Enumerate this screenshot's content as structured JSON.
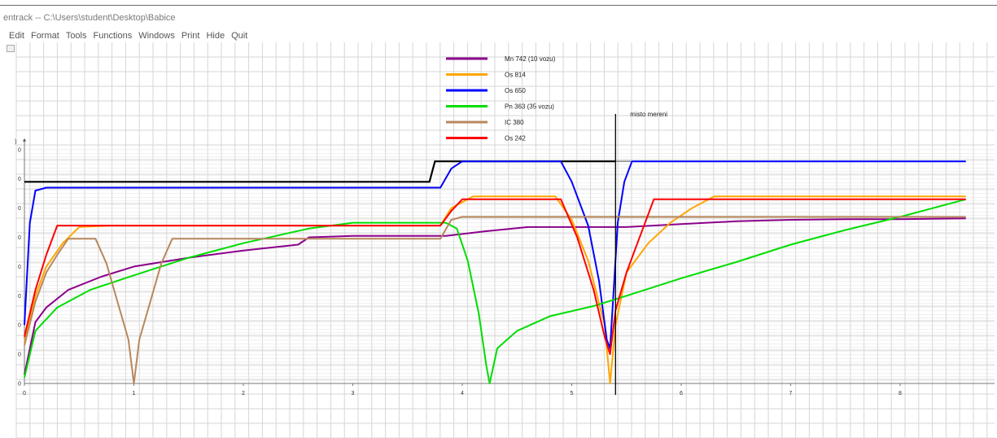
{
  "window": {
    "title": "entrack  --  C:\\Users\\student\\Desktop\\Babice"
  },
  "menu": [
    "Edit",
    "Format",
    "Tools",
    "Functions",
    "Windows",
    "Print",
    "Hide",
    "Quit"
  ],
  "chart_data": {
    "type": "line",
    "title": "",
    "xlabel": "",
    "ylabel": "",
    "ylabel_fragment": ")",
    "xlim": [
      0,
      8.6
    ],
    "ylim": [
      0,
      8
    ],
    "x_ticks": [
      "0",
      "1",
      "2",
      "3",
      "4",
      "5",
      "6",
      "7",
      "8"
    ],
    "y_ticks": [
      "0",
      "0",
      "0",
      "0",
      "0",
      "0",
      "0",
      "0",
      "0"
    ],
    "grid": true,
    "legend_position": "top-center",
    "annotation": {
      "text": "misto mereni",
      "x": 5.4
    },
    "speed_limit": {
      "name": "",
      "color": "#000000",
      "points": [
        [
          0,
          6.9
        ],
        [
          3.7,
          6.9
        ],
        [
          3.75,
          7.6
        ],
        [
          5.4,
          7.6
        ]
      ]
    },
    "series": [
      {
        "name": "Mn 742 (10 vozu)",
        "color": "#8b008b",
        "points": [
          [
            0,
            0.3
          ],
          [
            0.1,
            2.1
          ],
          [
            0.2,
            2.6
          ],
          [
            0.4,
            3.2
          ],
          [
            0.7,
            3.65
          ],
          [
            1.0,
            4.0
          ],
          [
            1.5,
            4.3
          ],
          [
            2.0,
            4.55
          ],
          [
            2.5,
            4.75
          ],
          [
            2.6,
            5.0
          ],
          [
            3.0,
            5.05
          ],
          [
            3.85,
            5.05
          ],
          [
            4.2,
            5.2
          ],
          [
            4.6,
            5.35
          ],
          [
            5.0,
            5.35
          ],
          [
            5.5,
            5.35
          ],
          [
            6.0,
            5.45
          ],
          [
            6.5,
            5.55
          ],
          [
            7.0,
            5.6
          ],
          [
            7.5,
            5.62
          ],
          [
            8.0,
            5.62
          ],
          [
            8.6,
            5.65
          ]
        ]
      },
      {
        "name": "Os 814",
        "color": "#ffa500",
        "points": [
          [
            0,
            1.4
          ],
          [
            0.1,
            3.0
          ],
          [
            0.2,
            4.0
          ],
          [
            0.35,
            4.8
          ],
          [
            0.5,
            5.35
          ],
          [
            0.8,
            5.4
          ],
          [
            2.5,
            5.4
          ],
          [
            3.8,
            5.4
          ],
          [
            3.9,
            6.0
          ],
          [
            4.1,
            6.4
          ],
          [
            4.85,
            6.4
          ],
          [
            5.0,
            5.6
          ],
          [
            5.15,
            4.2
          ],
          [
            5.3,
            2.0
          ],
          [
            5.35,
            0.0
          ],
          [
            5.4,
            2.0
          ],
          [
            5.5,
            3.8
          ],
          [
            5.7,
            4.8
          ],
          [
            5.9,
            5.5
          ],
          [
            6.1,
            6.0
          ],
          [
            6.3,
            6.4
          ],
          [
            8.6,
            6.4
          ]
        ]
      },
      {
        "name": "Os 650",
        "color": "#0000ff",
        "points": [
          [
            0,
            2.0
          ],
          [
            0.05,
            5.5
          ],
          [
            0.1,
            6.6
          ],
          [
            0.2,
            6.7
          ],
          [
            3.8,
            6.7
          ],
          [
            3.9,
            7.35
          ],
          [
            4.0,
            7.6
          ],
          [
            4.9,
            7.6
          ],
          [
            5.0,
            6.9
          ],
          [
            5.15,
            5.4
          ],
          [
            5.25,
            3.5
          ],
          [
            5.32,
            1.5
          ],
          [
            5.35,
            1.2
          ],
          [
            5.38,
            3.0
          ],
          [
            5.42,
            5.5
          ],
          [
            5.48,
            6.9
          ],
          [
            5.55,
            7.6
          ],
          [
            8.6,
            7.6
          ]
        ]
      },
      {
        "name": "Pn 363 (35 vozu)",
        "color": "#00dd00",
        "points": [
          [
            0,
            0.2
          ],
          [
            0.1,
            1.8
          ],
          [
            0.3,
            2.6
          ],
          [
            0.6,
            3.2
          ],
          [
            1.0,
            3.7
          ],
          [
            1.5,
            4.3
          ],
          [
            2.0,
            4.8
          ],
          [
            2.6,
            5.3
          ],
          [
            3.0,
            5.5
          ],
          [
            3.85,
            5.5
          ],
          [
            3.95,
            5.3
          ],
          [
            4.05,
            4.2
          ],
          [
            4.15,
            2.4
          ],
          [
            4.22,
            0.6
          ],
          [
            4.25,
            0.0
          ],
          [
            4.32,
            1.2
          ],
          [
            4.5,
            1.8
          ],
          [
            4.8,
            2.3
          ],
          [
            5.2,
            2.65
          ],
          [
            5.5,
            3.0
          ],
          [
            6.0,
            3.6
          ],
          [
            6.5,
            4.15
          ],
          [
            7.0,
            4.75
          ],
          [
            7.5,
            5.25
          ],
          [
            8.0,
            5.7
          ],
          [
            8.6,
            6.3
          ]
        ]
      },
      {
        "name": "IC 380",
        "color": "#b8875c",
        "points": [
          [
            0,
            1.3
          ],
          [
            0.1,
            2.8
          ],
          [
            0.2,
            3.8
          ],
          [
            0.3,
            4.4
          ],
          [
            0.4,
            4.95
          ],
          [
            0.65,
            4.95
          ],
          [
            0.75,
            4.1
          ],
          [
            0.85,
            2.8
          ],
          [
            0.95,
            1.5
          ],
          [
            1.0,
            0.0
          ],
          [
            1.05,
            1.5
          ],
          [
            1.15,
            2.8
          ],
          [
            1.25,
            4.1
          ],
          [
            1.35,
            4.95
          ],
          [
            3.8,
            4.95
          ],
          [
            3.9,
            5.6
          ],
          [
            4.0,
            5.7
          ],
          [
            8.6,
            5.7
          ]
        ]
      },
      {
        "name": "Os 242",
        "color": "#ff0000",
        "points": [
          [
            0,
            1.6
          ],
          [
            0.1,
            3.2
          ],
          [
            0.2,
            4.4
          ],
          [
            0.3,
            5.4
          ],
          [
            1.0,
            5.4
          ],
          [
            2.5,
            5.4
          ],
          [
            3.8,
            5.4
          ],
          [
            3.9,
            5.9
          ],
          [
            4.0,
            6.3
          ],
          [
            4.9,
            6.3
          ],
          [
            5.05,
            5.0
          ],
          [
            5.2,
            3.2
          ],
          [
            5.3,
            1.6
          ],
          [
            5.35,
            1.0
          ],
          [
            5.4,
            2.5
          ],
          [
            5.5,
            3.8
          ],
          [
            5.6,
            4.8
          ],
          [
            5.75,
            6.3
          ],
          [
            8.6,
            6.3
          ]
        ]
      }
    ]
  }
}
